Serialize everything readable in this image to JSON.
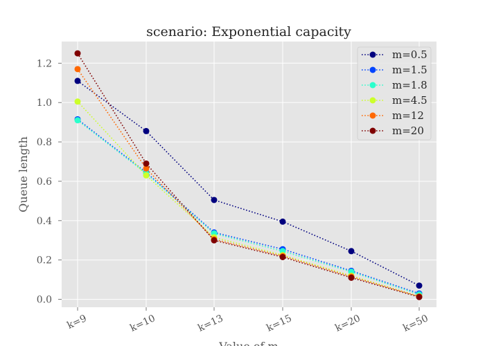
{
  "chart_data": {
    "type": "line",
    "title": "scenario: Exponential capacity",
    "xlabel": "Value of m",
    "ylabel": "Queue length",
    "categories": [
      "k=9",
      "k=10",
      "k=13",
      "k=15",
      "k=20",
      "k=50"
    ],
    "ylim": [
      -0.04,
      1.31
    ],
    "yticks": [
      0.0,
      0.2,
      0.4,
      0.6,
      0.8,
      1.0,
      1.2
    ],
    "ytick_labels": [
      "0.0",
      "0.2",
      "0.4",
      "0.6",
      "0.8",
      "1.0",
      "1.2"
    ],
    "grid": true,
    "legend_position": "top-right",
    "line_style": "dotted",
    "series": [
      {
        "name": "m=0.5",
        "color": "#00007f",
        "values": [
          1.11,
          0.855,
          0.505,
          0.395,
          0.245,
          0.07
        ]
      },
      {
        "name": "m=1.5",
        "color": "#0044ff",
        "values": [
          0.915,
          0.645,
          0.34,
          0.255,
          0.145,
          0.03
        ]
      },
      {
        "name": "m=1.8",
        "color": "#2affcc",
        "values": [
          0.91,
          0.64,
          0.335,
          0.245,
          0.14,
          0.025
        ]
      },
      {
        "name": "m=4.5",
        "color": "#ccff2a",
        "values": [
          1.005,
          0.63,
          0.315,
          0.225,
          0.12,
          0.015
        ]
      },
      {
        "name": "m=12",
        "color": "#ff6800",
        "values": [
          1.17,
          0.665,
          0.305,
          0.22,
          0.115,
          0.015
        ]
      },
      {
        "name": "m=20",
        "color": "#7f0000",
        "values": [
          1.25,
          0.69,
          0.3,
          0.215,
          0.11,
          0.012
        ]
      }
    ]
  }
}
